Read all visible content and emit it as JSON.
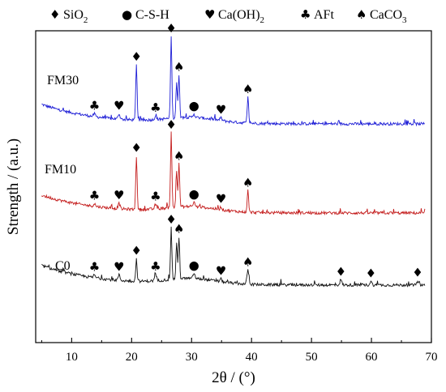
{
  "chart_data": {
    "type": "line",
    "xlabel": "2θ / (°)",
    "ylabel": "Strength / (a.u.)",
    "xlim": [
      4,
      70
    ],
    "x_ticks": [
      10,
      20,
      30,
      40,
      50,
      60,
      70
    ],
    "y_ticks_labeled": false,
    "grid": false,
    "legend_position": "top",
    "legend": [
      {
        "symbol": "♦",
        "label": "SiO",
        "sub": "2"
      },
      {
        "symbol": "●",
        "label": "C-S-H",
        "sub": ""
      },
      {
        "symbol": "♥",
        "label": "Ca(OH)",
        "sub": "2"
      },
      {
        "symbol": "♣",
        "label": "AFt",
        "sub": ""
      },
      {
        "symbol": "♠",
        "label": "CaCO",
        "sub": "3"
      }
    ],
    "series": [
      {
        "name": "FM30",
        "color": "#1f1fd6",
        "offset": 200,
        "peaks": [
          {
            "x": 13.8,
            "h": 3,
            "phase": "AFt"
          },
          {
            "x": 17.9,
            "h": 6,
            "phase": "Ca(OH)2"
          },
          {
            "x": 20.8,
            "h": 62,
            "phase": "SiO2"
          },
          {
            "x": 24.0,
            "h": 4,
            "phase": "AFt"
          },
          {
            "x": 26.6,
            "h": 92,
            "phase": "SiO2"
          },
          {
            "x": 27.5,
            "h": 40,
            "phase": ""
          },
          {
            "x": 27.9,
            "h": 48,
            "phase": "CaCO3"
          },
          {
            "x": 30.4,
            "h": 4,
            "phase": "C-S-H"
          },
          {
            "x": 34.9,
            "h": 3,
            "phase": "Ca(OH)2"
          },
          {
            "x": 39.4,
            "h": 29,
            "phase": "CaCO3"
          }
        ]
      },
      {
        "name": "FM10",
        "color": "#c41d1d",
        "offset": 100,
        "peaks": [
          {
            "x": 13.8,
            "h": 3,
            "phase": "AFt"
          },
          {
            "x": 17.9,
            "h": 6,
            "phase": "Ca(OH)2"
          },
          {
            "x": 20.8,
            "h": 60,
            "phase": "SiO2"
          },
          {
            "x": 24.0,
            "h": 5,
            "phase": "AFt"
          },
          {
            "x": 26.6,
            "h": 84,
            "phase": "SiO2"
          },
          {
            "x": 27.5,
            "h": 40,
            "phase": ""
          },
          {
            "x": 27.9,
            "h": 48,
            "phase": "CaCO3"
          },
          {
            "x": 30.4,
            "h": 5,
            "phase": "C-S-H"
          },
          {
            "x": 34.9,
            "h": 3,
            "phase": "Ca(OH)2"
          },
          {
            "x": 39.4,
            "h": 24,
            "phase": "CaCO3"
          }
        ]
      },
      {
        "name": "C0",
        "color": "#111111",
        "offset": 0,
        "peaks": [
          {
            "x": 13.8,
            "h": 3,
            "phase": "AFt"
          },
          {
            "x": 17.9,
            "h": 6,
            "phase": "Ca(OH)2"
          },
          {
            "x": 20.8,
            "h": 25,
            "phase": "SiO2"
          },
          {
            "x": 24.0,
            "h": 7,
            "phase": "AFt"
          },
          {
            "x": 26.6,
            "h": 58,
            "phase": "SiO2"
          },
          {
            "x": 27.5,
            "h": 40,
            "phase": ""
          },
          {
            "x": 27.9,
            "h": 47,
            "phase": "CaCO3"
          },
          {
            "x": 30.4,
            "h": 6,
            "phase": "C-S-H"
          },
          {
            "x": 34.9,
            "h": 3,
            "phase": "Ca(OH)2"
          },
          {
            "x": 39.4,
            "h": 16,
            "phase": "CaCO3"
          },
          {
            "x": 54.9,
            "h": 6,
            "phase": "SiO2"
          },
          {
            "x": 59.9,
            "h": 4,
            "phase": "SiO2"
          },
          {
            "x": 67.7,
            "h": 5,
            "phase": "SiO2"
          }
        ]
      }
    ]
  }
}
